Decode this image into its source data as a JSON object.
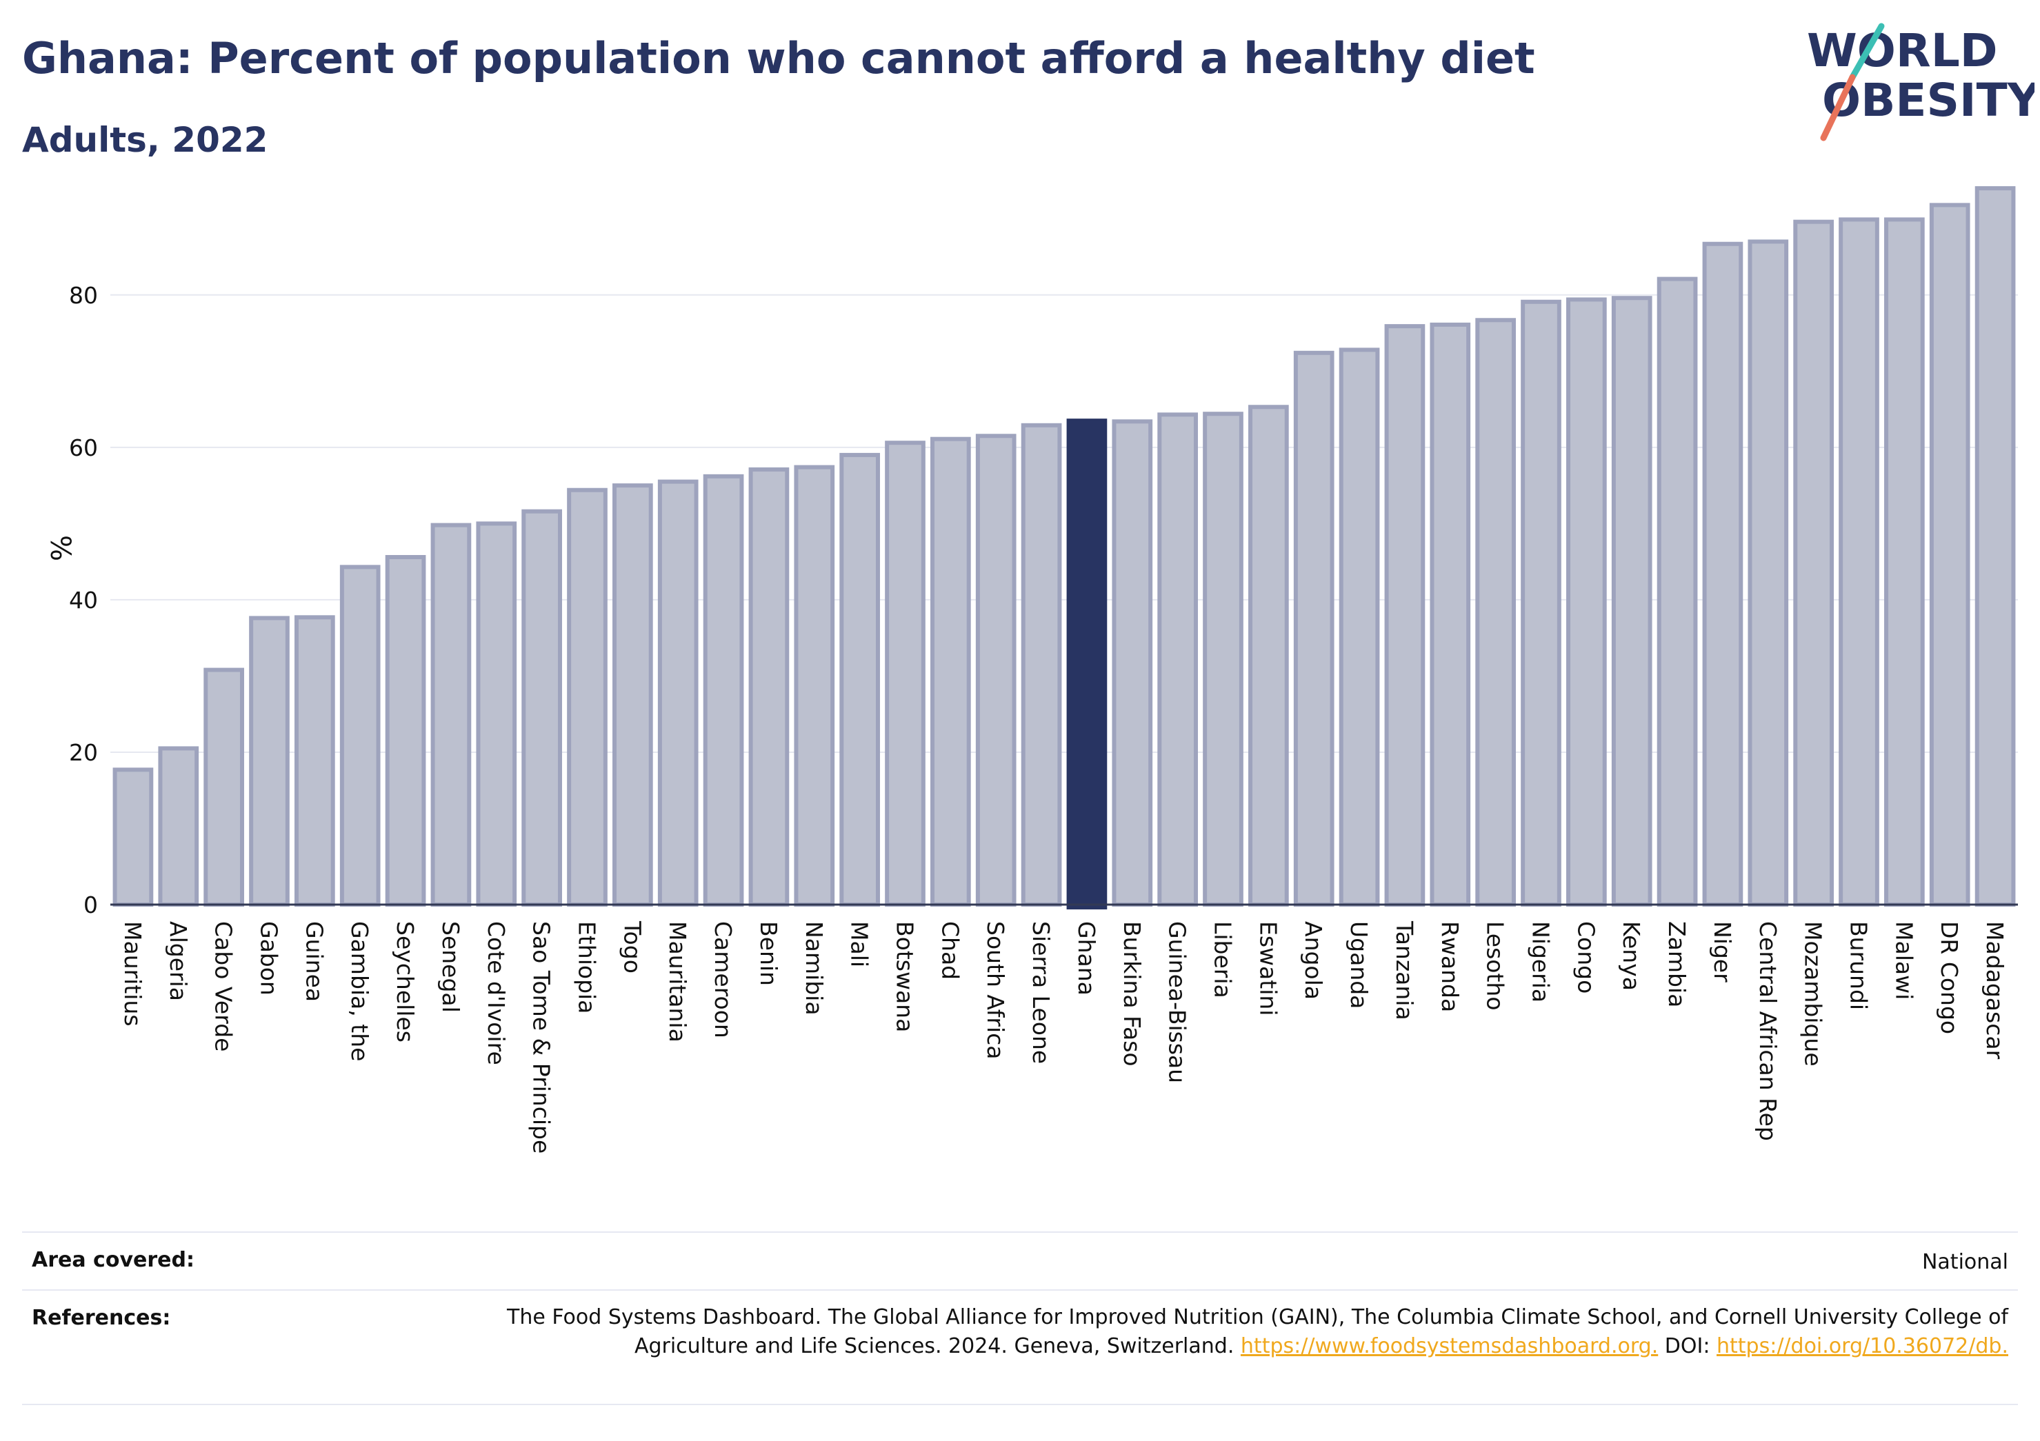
{
  "title": "Ghana: Percent of population who cannot afford a healthy diet",
  "subtitle": "Adults, 2022",
  "logo": {
    "line1": "WORLD",
    "line2": "OBESITY",
    "accent_colors": [
      "#3cbfb4",
      "#e8735a"
    ]
  },
  "chart_data": {
    "type": "bar",
    "title": "Ghana: Percent of population who cannot afford a healthy diet",
    "subtitle": "Adults, 2022",
    "xlabel": "",
    "ylabel": "%",
    "ylim": [
      0,
      95
    ],
    "yticks": [
      0,
      20,
      40,
      60,
      80
    ],
    "grid": true,
    "highlight": "Ghana",
    "colors": {
      "bar": "#bcc0cf",
      "bar_edge": "#9ea3bd",
      "highlight": "#283462"
    },
    "categories": [
      "Mauritius",
      "Algeria",
      "Cabo Verde",
      "Gabon",
      "Guinea",
      "Gambia, the",
      "Seychelles",
      "Senegal",
      "Cote d'Ivoire",
      "Sao Tome & Principe",
      "Ethiopia",
      "Togo",
      "Mauritania",
      "Cameroon",
      "Benin",
      "Namibia",
      "Mali",
      "Botswana",
      "Chad",
      "South Africa",
      "Sierra Leone",
      "Ghana",
      "Burkina Faso",
      "Guinea-Bissau",
      "Liberia",
      "Eswatini",
      "Angola",
      "Uganda",
      "Tanzania",
      "Rwanda",
      "Lesotho",
      "Nigeria",
      "Congo",
      "Kenya",
      "Zambia",
      "Niger",
      "Central African Rep",
      "Mozambique",
      "Burundi",
      "Malawi",
      "DR Congo",
      "Madagascar"
    ],
    "values": [
      17.7,
      20.5,
      30.8,
      37.6,
      37.7,
      44.3,
      45.6,
      49.8,
      50.0,
      51.6,
      54.4,
      55.0,
      55.5,
      56.2,
      57.1,
      57.4,
      59.0,
      60.6,
      61.1,
      61.5,
      62.9,
      63.5,
      63.4,
      64.3,
      64.4,
      65.3,
      72.4,
      72.8,
      75.9,
      76.1,
      76.7,
      79.1,
      79.4,
      79.6,
      82.1,
      86.7,
      87.0,
      89.6,
      89.9,
      89.9,
      91.8,
      94.0
    ]
  },
  "footer": {
    "area_label": "Area covered:",
    "area_value": "National",
    "ref_label": "References:",
    "ref_text": "The Food Systems Dashboard. The Global Alliance for Improved Nutrition (GAIN), The Columbia Climate School, and Cornell University College of Agriculture and Life Sciences. 2024. Geneva, Switzerland.",
    "ref_link": "https://www.foodsystemsdashboard.org.",
    "doi_label": "DOI:",
    "doi_link": "https://doi.org/10.36072/db."
  }
}
